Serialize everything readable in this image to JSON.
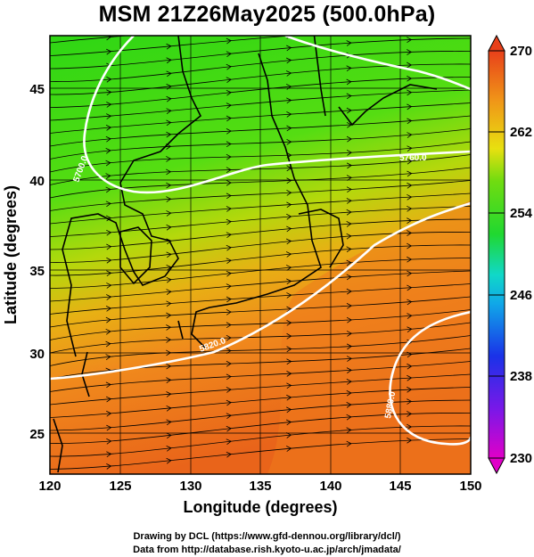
{
  "title": "MSM 21Z26May2025 (500.0hPa)",
  "axes": {
    "xlabel": "Longitude (degrees)",
    "ylabel": "Latitude  (degrees)",
    "xlim": [
      120,
      150
    ],
    "ylim": [
      22.5,
      47.5
    ],
    "xticks": [
      "120",
      "125",
      "130",
      "135",
      "140",
      "145",
      "150"
    ],
    "yticks": [
      "25",
      "30",
      "35",
      "40",
      "45"
    ]
  },
  "colorbar": {
    "range": [
      230,
      270
    ],
    "labels": [
      "270",
      "262",
      "254",
      "246",
      "238",
      "230"
    ]
  },
  "contour_labels": [
    "5700.0",
    "5760.0",
    "5820.0",
    "5880.0"
  ],
  "credits": {
    "line1": "Drawing by DCL (https://www.gfd-dennou.org/library/dcl/)",
    "line2": "Data from http://database.rish.kyoto-u.ac.jp/arch/jmadata/"
  },
  "colors": {
    "warm": "#e8601a",
    "orange": "#f28a1e",
    "yellow": "#c8d80a",
    "green": "#2ed614",
    "contour": "#ffffff"
  }
}
